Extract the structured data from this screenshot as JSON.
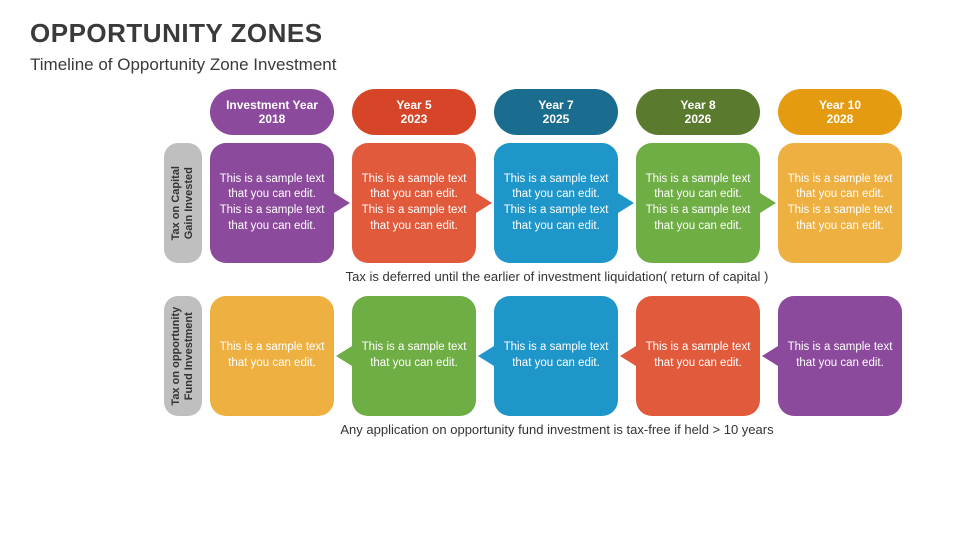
{
  "title": "OPPORTUNITY ZONES",
  "subtitle": "Timeline of Opportunity Zone Investment",
  "colors": {
    "purple": "#8b4a9c",
    "red": "#d64527",
    "blue_dark": "#1a6d8e",
    "green_dark": "#5a7a2e",
    "orange_dark": "#e49b0f",
    "orange": "#eeb041",
    "green": "#6fad45",
    "blue": "#1f96c9",
    "red2": "#e15a3c",
    "grey_label": "#bfbfbf"
  },
  "headers": [
    {
      "line1": "Investment Year",
      "line2": "2018",
      "colorKey": "purple"
    },
    {
      "line1": "Year 5",
      "line2": "2023",
      "colorKey": "red"
    },
    {
      "line1": "Year 7",
      "line2": "2025",
      "colorKey": "blue_dark"
    },
    {
      "line1": "Year 8",
      "line2": "2026",
      "colorKey": "green_dark"
    },
    {
      "line1": "Year 10",
      "line2": "2028",
      "colorKey": "orange_dark"
    }
  ],
  "row1": {
    "label": "Tax on Capital\nGain Invested",
    "sample": "This is a sample text that you can edit. This is a sample text that you can edit.",
    "boxColors": [
      "purple",
      "red2",
      "blue",
      "green",
      "orange"
    ],
    "caption": "Tax is deferred until the earlier of investment liquidation( return of capital )"
  },
  "row2": {
    "label": "Tax on opportunity\nFund Investment",
    "sample": "This is a sample text that you can edit.",
    "boxColors": [
      "orange",
      "green",
      "blue",
      "red2",
      "purple"
    ],
    "caption": "Any application on opportunity fund investment is tax-free if held > 10 years"
  }
}
